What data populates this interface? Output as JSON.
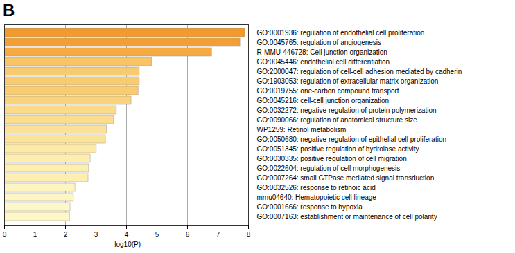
{
  "chart_data": {
    "type": "bar",
    "title": "B",
    "orientation": "horizontal",
    "x_label": "-log10(P)",
    "categories": [
      "GO:0001936: regulation of endothelial cell proliferation",
      "GO:0045765: regulation of angiogenesis",
      "R-MMU-446728: Cell junction organization",
      "GO:0045446: endothelial cell differentiation",
      "GO:2000047: regulation of cell-cell adhesion mediated by cadherin",
      "GO:1903053: regulation of extracellular matrix organization",
      "GO:0019755: one-carbon compound transport",
      "GO:0045216: cell-cell junction organization",
      "GO:0032272: negative regulation of protein polymerization",
      "GO:0090066: regulation of anatomical structure size",
      "WP1259: Retinol metabolism",
      "GO:0050680: negative regulation of epithelial cell proliferation",
      "GO:0051345: positive regulation of hydrolase activity",
      "GO:0030335: positive regulation of cell migration",
      "GO:0022604: regulation of cell morphogenesis",
      "GO:0007264: small GTPase mediated signal transduction",
      "GO:0032526: response to retinoic acid",
      "mmu04640: Hematopoietic cell lineage",
      "GO:0001666: response to hypoxia",
      "GO:0007163: establishment or maintenance of cell polarity"
    ],
    "values": [
      7.9,
      7.73,
      6.8,
      4.84,
      4.43,
      4.43,
      4.39,
      4.16,
      3.68,
      3.59,
      3.36,
      3.32,
      3.02,
      2.82,
      2.77,
      2.75,
      2.32,
      2.27,
      2.16,
      2.14
    ],
    "colors": [
      "#f29a2e",
      "#f39f33",
      "#f5ab42",
      "#f8c466",
      "#f9cb70",
      "#f9cb70",
      "#f9cc72",
      "#fad27a",
      "#fbdb8a",
      "#fcdd8e",
      "#fce298",
      "#fce39a",
      "#fde9a6",
      "#fdedaf",
      "#fdeeb1",
      "#fdeeb2",
      "#fef4c2",
      "#fef5c4",
      "#fef7c8",
      "#fef7c9"
    ],
    "xlim": [
      0,
      8
    ],
    "xticks": [
      0,
      1,
      2,
      3,
      4,
      5,
      6,
      7,
      8
    ],
    "grid": true
  }
}
